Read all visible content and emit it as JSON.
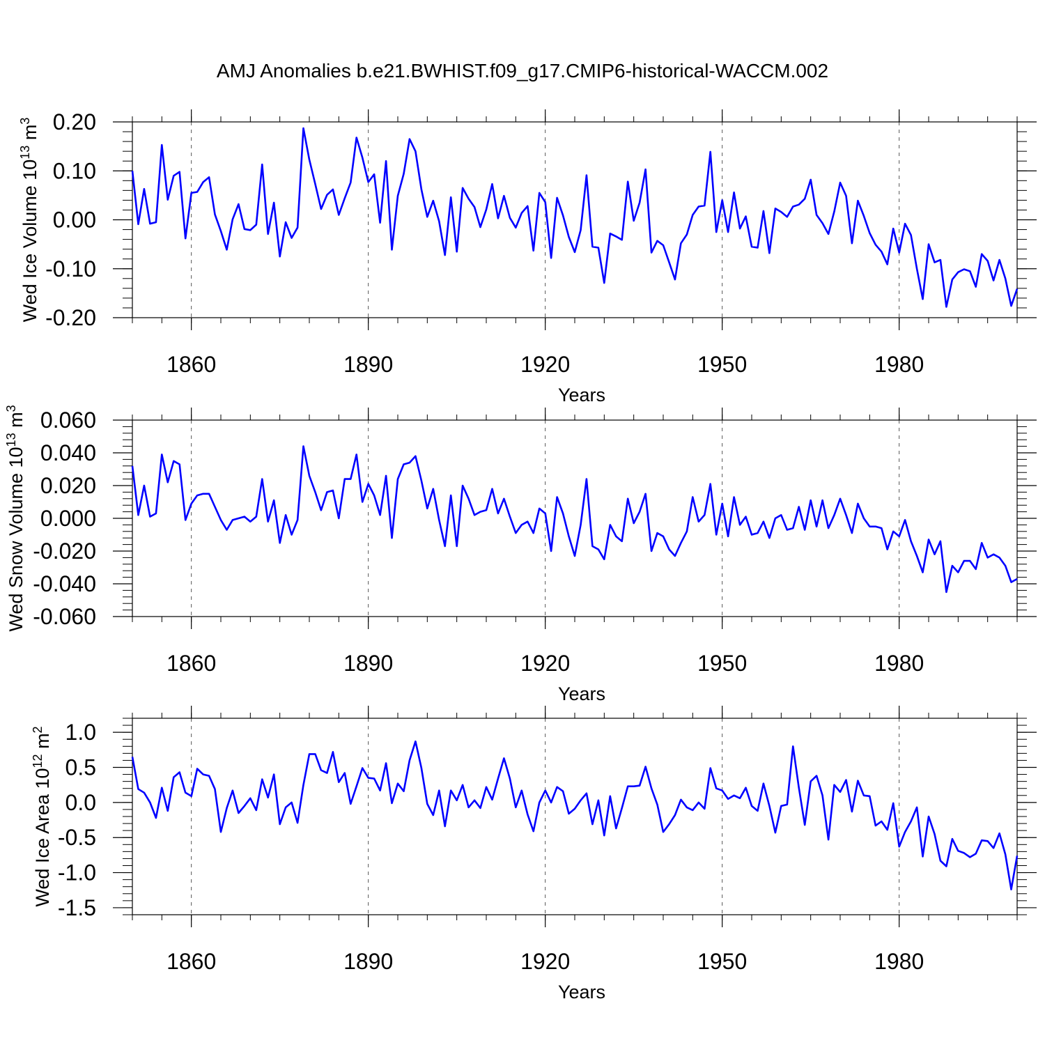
{
  "title": "AMJ Anomalies b.e21.BWHIST.f09_g17.CMIP6-historical-WACCM.002",
  "colors": {
    "series": "#0000ff",
    "axis": "#000000",
    "grid": "#555555"
  },
  "chart_data": [
    {
      "type": "line",
      "name": "ice-volume",
      "ylabel": {
        "prefix": "Wed Ice Volume 10",
        "exp1": "13",
        "mid": " m",
        "exp2": "3"
      },
      "xlabel": "Years",
      "xlim": [
        1850,
        2000
      ],
      "ylim": [
        -0.2,
        0.2
      ],
      "xticks": [
        1860,
        1890,
        1920,
        1950,
        1980
      ],
      "xtick_labels": [
        "1860",
        "1890",
        "1920",
        "1950",
        "1980"
      ],
      "yticks": [
        -0.2,
        -0.1,
        0.0,
        0.1,
        0.2
      ],
      "ytick_labels": [
        "-0.20",
        "-0.10",
        "0.00",
        "0.10",
        "0.20"
      ],
      "grid": "vertical dashed at major x ticks",
      "x_start": 1850,
      "values": [
        0.1,
        -0.009,
        0.063,
        -0.008,
        -0.005,
        0.153,
        0.041,
        0.09,
        0.098,
        -0.038,
        0.055,
        0.057,
        0.077,
        0.087,
        0.011,
        -0.023,
        -0.061,
        0.001,
        0.032,
        -0.019,
        -0.021,
        -0.01,
        0.113,
        -0.029,
        0.035,
        -0.075,
        -0.005,
        -0.037,
        -0.016,
        0.187,
        0.123,
        0.073,
        0.022,
        0.051,
        0.062,
        0.01,
        0.044,
        0.076,
        0.168,
        0.127,
        0.077,
        0.093,
        -0.006,
        0.12,
        -0.061,
        0.049,
        0.094,
        0.165,
        0.14,
        0.062,
        0.006,
        0.039,
        -0.003,
        -0.072,
        0.046,
        -0.065,
        0.065,
        0.043,
        0.026,
        -0.015,
        0.021,
        0.073,
        0.003,
        0.049,
        0.004,
        -0.016,
        0.014,
        0.028,
        -0.063,
        0.055,
        0.036,
        -0.078,
        0.045,
        0.009,
        -0.035,
        -0.066,
        -0.021,
        0.091,
        -0.055,
        -0.057,
        -0.129,
        -0.028,
        -0.034,
        -0.041,
        0.078,
        -0.002,
        0.035,
        0.103,
        -0.067,
        -0.043,
        -0.052,
        -0.087,
        -0.122,
        -0.048,
        -0.03,
        0.01,
        0.027,
        0.029,
        0.139,
        -0.025,
        0.04,
        -0.025,
        0.056,
        -0.018,
        0.007,
        -0.055,
        -0.057,
        0.018,
        -0.068,
        0.023,
        0.016,
        0.006,
        0.027,
        0.031,
        0.043,
        0.082,
        0.01,
        -0.007,
        -0.029,
        0.017,
        0.076,
        0.049,
        -0.048,
        0.039,
        0.008,
        -0.027,
        -0.051,
        -0.065,
        -0.091,
        -0.018,
        -0.067,
        -0.008,
        -0.031,
        -0.1,
        -0.162,
        -0.05,
        -0.087,
        -0.082,
        -0.178,
        -0.122,
        -0.107,
        -0.101,
        -0.105,
        -0.137,
        -0.07,
        -0.084,
        -0.124,
        -0.082,
        -0.12,
        -0.176,
        -0.141
      ]
    },
    {
      "type": "line",
      "name": "snow-volume",
      "ylabel": {
        "prefix": "Wed Snow Volume 10",
        "exp1": "13",
        "mid": " m",
        "exp2": "3"
      },
      "xlabel": "Years",
      "xlim": [
        1850,
        2000
      ],
      "ylim": [
        -0.06,
        0.06
      ],
      "xticks": [
        1860,
        1890,
        1920,
        1950,
        1980
      ],
      "xtick_labels": [
        "1860",
        "1890",
        "1920",
        "1950",
        "1980"
      ],
      "yticks": [
        -0.06,
        -0.04,
        -0.02,
        0.0,
        0.02,
        0.04,
        0.06
      ],
      "ytick_labels": [
        "-0.060",
        "-0.040",
        "-0.020",
        "0.000",
        "0.020",
        "0.040",
        "0.060"
      ],
      "grid": "vertical dashed at major x ticks",
      "x_start": 1850,
      "values": [
        0.032,
        0.002,
        0.02,
        0.001,
        0.003,
        0.039,
        0.022,
        0.035,
        0.033,
        -0.001,
        0.009,
        0.014,
        0.015,
        0.015,
        0.007,
        -0.001,
        -0.007,
        -0.001,
        0.0,
        0.001,
        -0.002,
        0.001,
        0.024,
        -0.002,
        0.011,
        -0.015,
        0.002,
        -0.01,
        -0.001,
        0.044,
        0.026,
        0.016,
        0.005,
        0.016,
        0.017,
        0.0,
        0.024,
        0.024,
        0.039,
        0.01,
        0.021,
        0.014,
        0.002,
        0.026,
        -0.012,
        0.024,
        0.033,
        0.034,
        0.038,
        0.023,
        0.006,
        0.018,
        -0.001,
        -0.017,
        0.014,
        -0.017,
        0.02,
        0.012,
        0.002,
        0.004,
        0.005,
        0.018,
        0.003,
        0.012,
        0.001,
        -0.009,
        -0.004,
        -0.002,
        -0.009,
        0.006,
        0.003,
        -0.02,
        0.013,
        0.003,
        -0.011,
        -0.023,
        -0.004,
        0.024,
        -0.017,
        -0.019,
        -0.025,
        -0.004,
        -0.011,
        -0.014,
        0.012,
        -0.003,
        0.004,
        0.015,
        -0.02,
        -0.009,
        -0.011,
        -0.019,
        -0.023,
        -0.015,
        -0.008,
        0.013,
        -0.002,
        0.002,
        0.021,
        -0.01,
        0.009,
        -0.011,
        0.013,
        -0.004,
        0.001,
        -0.01,
        -0.009,
        -0.002,
        -0.012,
        0.0,
        0.002,
        -0.007,
        -0.006,
        0.007,
        -0.007,
        0.011,
        -0.005,
        0.011,
        -0.006,
        0.002,
        0.012,
        0.002,
        -0.009,
        0.009,
        0.0,
        -0.005,
        -0.005,
        -0.006,
        -0.019,
        -0.008,
        -0.011,
        -0.001,
        -0.014,
        -0.023,
        -0.033,
        -0.013,
        -0.022,
        -0.014,
        -0.045,
        -0.029,
        -0.033,
        -0.026,
        -0.026,
        -0.031,
        -0.015,
        -0.024,
        -0.022,
        -0.024,
        -0.029,
        -0.039,
        -0.037
      ]
    },
    {
      "type": "line",
      "name": "ice-area",
      "ylabel": {
        "prefix": "Wed Ice Area 10",
        "exp1": "12",
        "mid": " m",
        "exp2": "2"
      },
      "xlabel": "Years",
      "xlim": [
        1850,
        2000
      ],
      "ylim": [
        -1.6,
        1.2
      ],
      "xticks": [
        1860,
        1890,
        1920,
        1950,
        1980
      ],
      "xtick_labels": [
        "1860",
        "1890",
        "1920",
        "1950",
        "1980"
      ],
      "yticks": [
        -1.5,
        -1.0,
        -0.5,
        0.0,
        0.5,
        1.0
      ],
      "ytick_labels": [
        "-1.5",
        "-1.0",
        "-0.5",
        "0.0",
        "0.5",
        "1.0"
      ],
      "grid": "vertical dashed at major x ticks",
      "x_start": 1850,
      "values": [
        0.65,
        0.19,
        0.14,
        0.0,
        -0.22,
        0.21,
        -0.12,
        0.36,
        0.43,
        0.14,
        0.09,
        0.48,
        0.4,
        0.38,
        0.19,
        -0.42,
        -0.08,
        0.17,
        -0.15,
        -0.05,
        0.06,
        -0.11,
        0.33,
        0.07,
        0.4,
        -0.31,
        -0.07,
        0.0,
        -0.29,
        0.25,
        0.69,
        0.69,
        0.46,
        0.42,
        0.72,
        0.29,
        0.42,
        -0.02,
        0.23,
        0.49,
        0.35,
        0.34,
        0.17,
        0.56,
        -0.01,
        0.27,
        0.16,
        0.6,
        0.87,
        0.49,
        -0.02,
        -0.18,
        0.17,
        -0.34,
        0.17,
        0.03,
        0.25,
        -0.07,
        0.03,
        -0.08,
        0.22,
        0.04,
        0.34,
        0.63,
        0.34,
        -0.07,
        0.17,
        -0.17,
        -0.41,
        0.0,
        0.17,
        0.0,
        0.22,
        0.16,
        -0.16,
        -0.09,
        0.03,
        0.13,
        -0.31,
        0.03,
        -0.47,
        0.09,
        -0.37,
        -0.08,
        0.23,
        0.23,
        0.24,
        0.51,
        0.2,
        -0.03,
        -0.42,
        -0.31,
        -0.18,
        0.04,
        -0.07,
        -0.11,
        0.0,
        -0.09,
        0.49,
        0.2,
        0.17,
        0.05,
        0.1,
        0.06,
        0.21,
        -0.05,
        -0.12,
        0.27,
        -0.05,
        -0.43,
        -0.05,
        -0.03,
        0.8,
        0.21,
        -0.32,
        0.3,
        0.38,
        0.1,
        -0.53,
        0.25,
        0.15,
        0.32,
        -0.13,
        0.31,
        0.1,
        0.09,
        -0.33,
        -0.27,
        -0.39,
        -0.01,
        -0.63,
        -0.42,
        -0.27,
        -0.07,
        -0.77,
        -0.2,
        -0.45,
        -0.83,
        -0.91,
        -0.52,
        -0.69,
        -0.72,
        -0.78,
        -0.73,
        -0.54,
        -0.55,
        -0.65,
        -0.44,
        -0.74,
        -1.24,
        -0.76
      ]
    }
  ]
}
